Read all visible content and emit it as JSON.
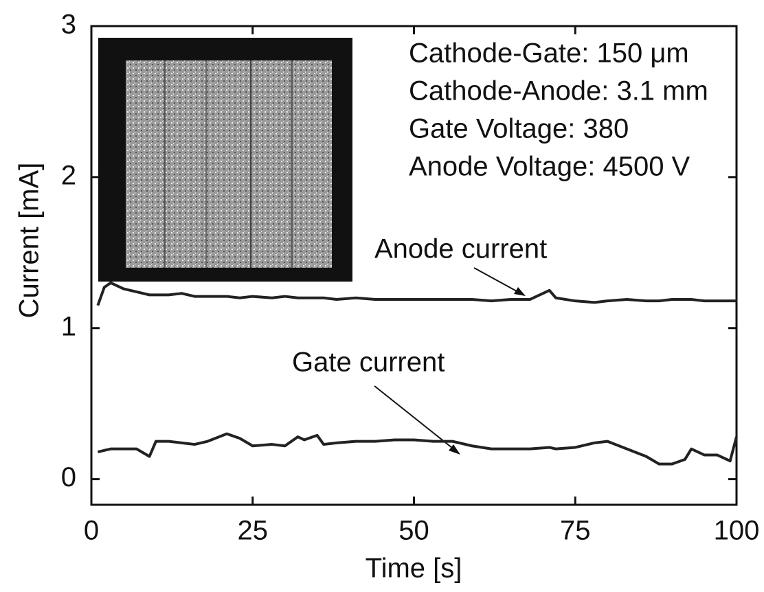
{
  "chart_data": {
    "type": "line",
    "x_label": "Time [s]",
    "y_label": "Current [mA]",
    "annotations": [
      "Cathode-Gate: 150 μm",
      "Cathode-Anode: 3.1 mm",
      "Gate Voltage: 380",
      "Anode Voltage: 4500 V"
    ],
    "x": [
      1,
      2,
      3,
      5,
      7,
      9,
      10,
      12,
      14,
      16,
      18,
      21,
      23,
      25,
      28,
      30,
      32,
      33,
      35,
      36,
      38,
      41,
      44,
      47,
      50,
      53,
      56,
      59,
      62,
      65,
      68,
      71,
      72,
      75,
      78,
      80,
      83,
      86,
      88,
      90,
      92,
      93,
      95,
      97,
      99,
      100
    ],
    "series": [
      {
        "name": "Anode current",
        "color": "#222222",
        "values": [
          1.15,
          1.27,
          1.3,
          1.26,
          1.24,
          1.22,
          1.22,
          1.22,
          1.23,
          1.21,
          1.21,
          1.21,
          1.2,
          1.21,
          1.2,
          1.21,
          1.2,
          1.2,
          1.2,
          1.2,
          1.19,
          1.2,
          1.19,
          1.19,
          1.19,
          1.19,
          1.19,
          1.19,
          1.18,
          1.19,
          1.19,
          1.25,
          1.2,
          1.18,
          1.17,
          1.18,
          1.19,
          1.18,
          1.18,
          1.19,
          1.19,
          1.19,
          1.18,
          1.18,
          1.18,
          1.18
        ]
      },
      {
        "name": "Gate current",
        "color": "#222222",
        "values": [
          0.18,
          0.19,
          0.2,
          0.2,
          0.2,
          0.15,
          0.25,
          0.25,
          0.24,
          0.23,
          0.25,
          0.3,
          0.27,
          0.22,
          0.23,
          0.22,
          0.28,
          0.26,
          0.29,
          0.23,
          0.24,
          0.25,
          0.25,
          0.26,
          0.26,
          0.25,
          0.25,
          0.22,
          0.2,
          0.2,
          0.2,
          0.21,
          0.2,
          0.21,
          0.24,
          0.25,
          0.2,
          0.15,
          0.1,
          0.1,
          0.13,
          0.2,
          0.16,
          0.16,
          0.12,
          0.28
        ]
      }
    ],
    "xlim": [
      0,
      100
    ],
    "xticks": [
      0,
      25,
      50,
      75,
      100
    ],
    "ylim": [
      -0.17,
      3
    ],
    "yticks": [
      0,
      1,
      2,
      3
    ]
  }
}
